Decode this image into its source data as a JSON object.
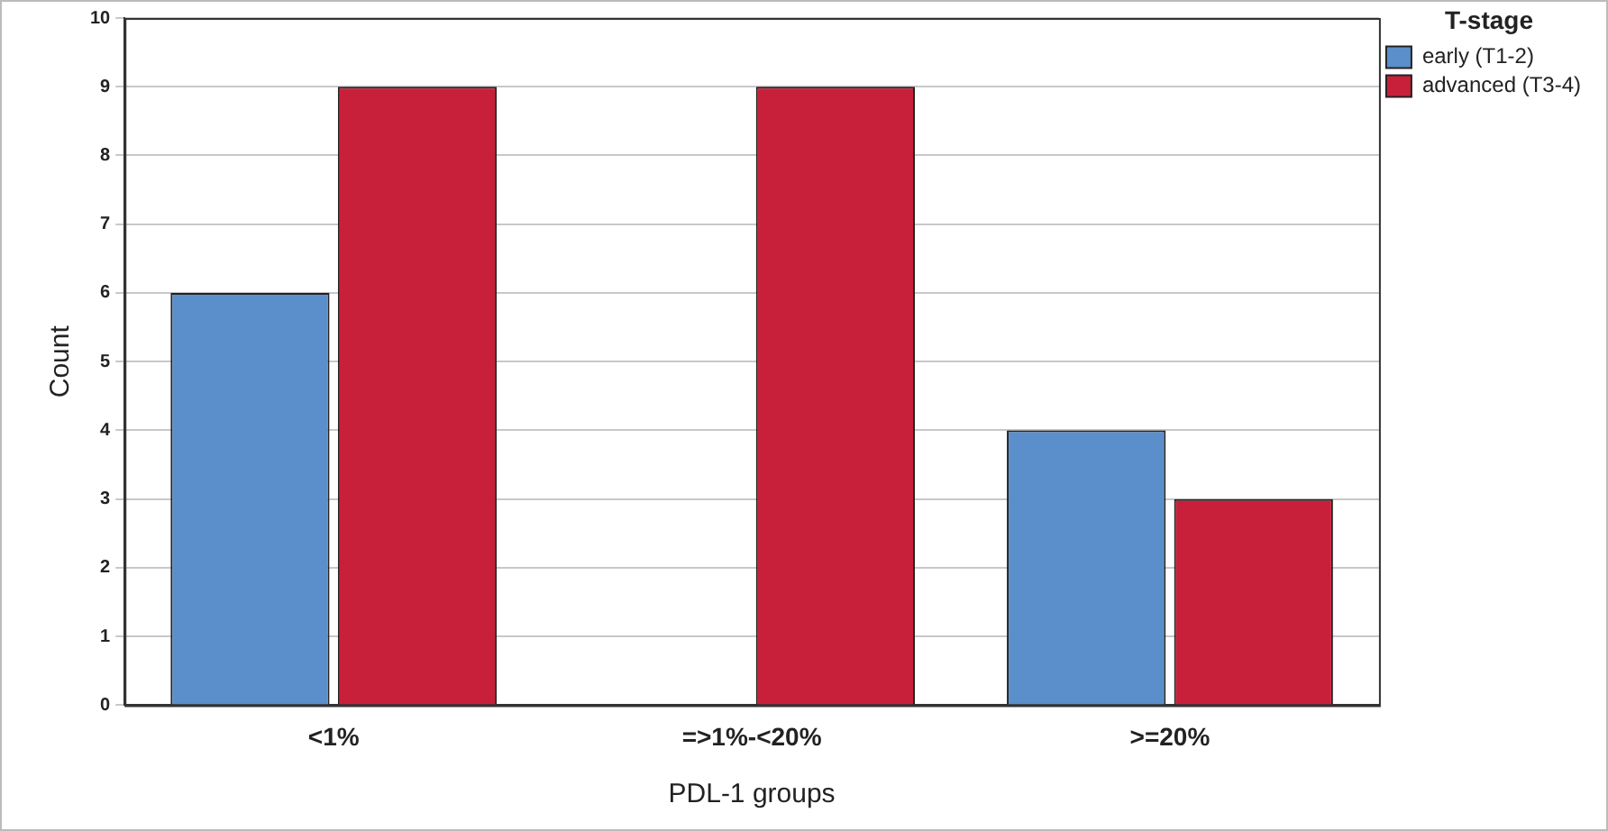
{
  "chart_data": {
    "type": "bar",
    "xlabel": "PDL-1 groups",
    "ylabel": "Count",
    "legend_title": "T-stage",
    "categories": [
      "<1%",
      "=>1%-<20%",
      ">=20%"
    ],
    "series": [
      {
        "name": "early (T1-2)",
        "color": "#5b8fcb",
        "values": [
          6,
          0,
          4
        ]
      },
      {
        "name": "advanced (T3-4)",
        "color": "#c8203a",
        "values": [
          9,
          9,
          3
        ]
      }
    ],
    "ylim": [
      0,
      10
    ],
    "yticks": [
      0,
      1,
      2,
      3,
      4,
      5,
      6,
      7,
      8,
      9,
      10
    ],
    "grid": "y",
    "legend": "top right"
  }
}
